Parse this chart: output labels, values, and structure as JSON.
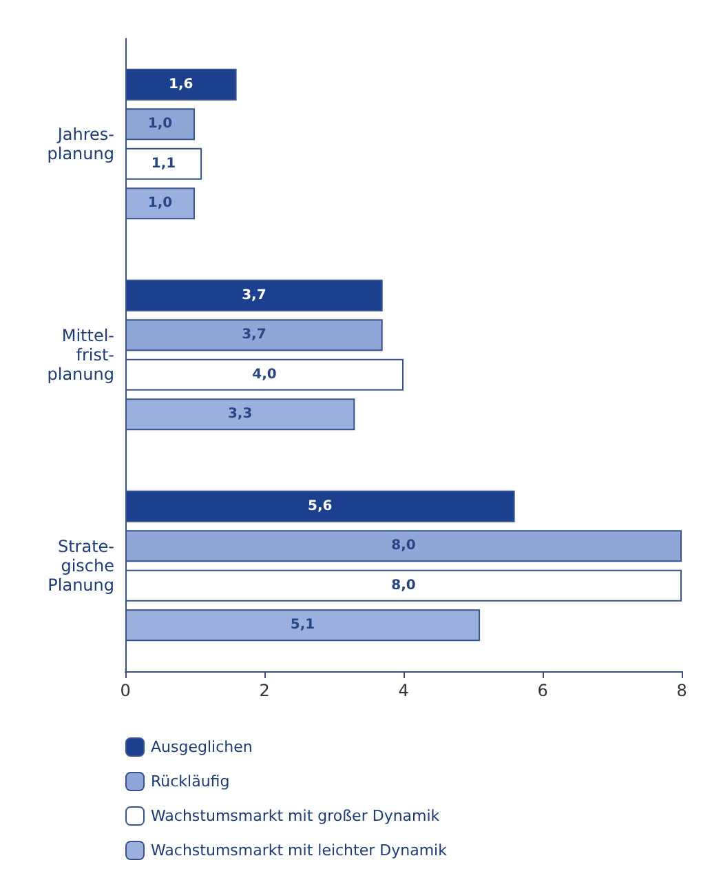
{
  "chart_data": {
    "type": "bar",
    "orientation": "horizontal",
    "categories": [
      "Jahres-\nplanung",
      "Mittel-\nfrist-\nplanung",
      "Strate-\ngische\nPlanung"
    ],
    "series": [
      {
        "name": "Ausgeglichen",
        "color": "#1c3f8e",
        "values": [
          1.6,
          3.7,
          5.6
        ],
        "value_labels": [
          "1,6",
          "3,7",
          "5,6"
        ]
      },
      {
        "name": "Rückläufig",
        "color": "#8fa6d6",
        "values": [
          1.0,
          3.7,
          8.0
        ],
        "value_labels": [
          "1,0",
          "3,7",
          "8,0"
        ]
      },
      {
        "name": "Wachstumsmarkt mit großer Dynamik",
        "color": "#ffffff",
        "values": [
          1.1,
          4.0,
          8.0
        ],
        "value_labels": [
          "1,1",
          "4,0",
          "8,0"
        ]
      },
      {
        "name": "Wachstumsmarkt mit leichter Dynamik",
        "color": "#9bb0dc",
        "values": [
          1.0,
          3.3,
          5.1
        ],
        "value_labels": [
          "1,0",
          "3,3",
          "5,1"
        ]
      }
    ],
    "xlim": [
      0,
      8
    ],
    "xticks": [
      0,
      2,
      4,
      6,
      8
    ],
    "grid": false,
    "legend": "bottom"
  }
}
